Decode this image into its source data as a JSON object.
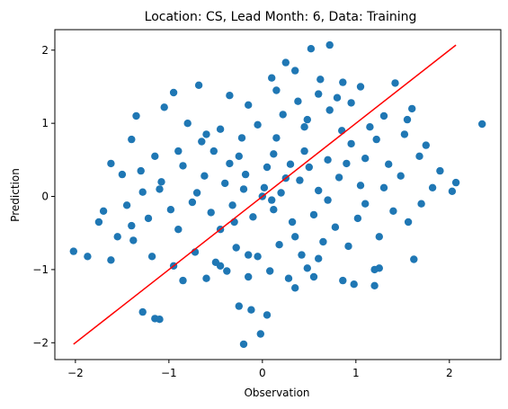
{
  "chart_data": {
    "type": "scatter",
    "title": "Location: CS, Lead Month: 6, Data: Training",
    "xlabel": "Observation",
    "ylabel": "Prediction",
    "xlim": [
      -2.22,
      2.55
    ],
    "ylim": [
      -2.23,
      2.28
    ],
    "xticks": [
      -2,
      -1,
      0,
      1,
      2
    ],
    "yticks": [
      -2,
      -1,
      0,
      1,
      2
    ],
    "xtick_labels": [
      "−2",
      "−1",
      "0",
      "1",
      "2"
    ],
    "ytick_labels": [
      "−2",
      "−1",
      "0",
      "1",
      "2"
    ],
    "grid": false,
    "colors": {
      "points": "#1f77b4",
      "fit_line": "#ff0000"
    },
    "fit_line": {
      "x": [
        -2.02,
        2.07
      ],
      "y": [
        -2.02,
        2.07
      ]
    },
    "points": [
      [
        -2.02,
        -0.75
      ],
      [
        -1.87,
        -0.82
      ],
      [
        2.35,
        0.99
      ],
      [
        2.07,
        0.19
      ],
      [
        2.03,
        0.07
      ],
      [
        0.72,
        2.07
      ],
      [
        0.52,
        2.02
      ],
      [
        0.25,
        1.83
      ],
      [
        0.35,
        1.72
      ],
      [
        0.1,
        1.62
      ],
      [
        0.62,
        1.6
      ],
      [
        0.86,
        1.56
      ],
      [
        1.05,
        1.5
      ],
      [
        1.42,
        1.55
      ],
      [
        -0.68,
        1.52
      ],
      [
        -0.95,
        1.42
      ],
      [
        -0.35,
        1.38
      ],
      [
        1.6,
        1.2
      ],
      [
        1.55,
        1.05
      ],
      [
        1.75,
        0.7
      ],
      [
        1.82,
        0.12
      ],
      [
        1.56,
        -0.35
      ],
      [
        1.62,
        -0.86
      ],
      [
        1.25,
        -0.98
      ],
      [
        1.2,
        -1.0
      ],
      [
        0.86,
        -1.15
      ],
      [
        0.98,
        -1.2
      ],
      [
        1.2,
        -1.22
      ],
      [
        0.55,
        -1.1
      ],
      [
        0.35,
        -1.25
      ],
      [
        -0.12,
        -1.55
      ],
      [
        0.05,
        -1.62
      ],
      [
        -0.25,
        -1.5
      ],
      [
        -0.2,
        -2.02
      ],
      [
        -0.02,
        -1.88
      ],
      [
        -1.28,
        -1.58
      ],
      [
        -1.15,
        -1.67
      ],
      [
        -1.1,
        -1.68
      ],
      [
        -1.62,
        -0.87
      ],
      [
        -1.55,
        -0.55
      ],
      [
        -1.62,
        0.45
      ],
      [
        -1.4,
        0.78
      ],
      [
        -1.35,
        1.1
      ],
      [
        -1.05,
        1.22
      ],
      [
        -0.8,
        1.0
      ],
      [
        -0.52,
        0.62
      ],
      [
        -0.22,
        0.8
      ],
      [
        0.12,
        0.58
      ],
      [
        0.3,
        0.44
      ],
      [
        0.45,
        0.62
      ],
      [
        0.7,
        0.5
      ],
      [
        0.95,
        0.72
      ],
      [
        1.1,
        0.52
      ],
      [
        1.35,
        0.44
      ],
      [
        1.52,
        0.85
      ],
      [
        1.48,
        0.28
      ],
      [
        1.3,
        0.12
      ],
      [
        1.05,
        0.15
      ],
      [
        0.82,
        0.26
      ],
      [
        0.6,
        0.08
      ],
      [
        0.4,
        0.22
      ],
      [
        0.2,
        0.05
      ],
      [
        0.02,
        0.12
      ],
      [
        -0.18,
        0.3
      ],
      [
        -0.4,
        0.18
      ],
      [
        -0.62,
        0.28
      ],
      [
        -0.85,
        0.42
      ],
      [
        -1.08,
        0.2
      ],
      [
        -1.28,
        0.06
      ],
      [
        -1.45,
        -0.12
      ],
      [
        -1.22,
        -0.3
      ],
      [
        -0.98,
        -0.18
      ],
      [
        -0.75,
        -0.08
      ],
      [
        -0.55,
        -0.22
      ],
      [
        -0.32,
        -0.12
      ],
      [
        -0.1,
        -0.28
      ],
      [
        0.12,
        -0.18
      ],
      [
        0.32,
        -0.35
      ],
      [
        0.55,
        -0.25
      ],
      [
        0.78,
        -0.42
      ],
      [
        1.02,
        -0.3
      ],
      [
        1.25,
        -0.55
      ],
      [
        0.92,
        -0.68
      ],
      [
        0.65,
        -0.62
      ],
      [
        0.42,
        -0.8
      ],
      [
        0.18,
        -0.66
      ],
      [
        -0.05,
        -0.82
      ],
      [
        -0.28,
        -0.7
      ],
      [
        -0.5,
        -0.9
      ],
      [
        -0.72,
        -0.76
      ],
      [
        -0.95,
        -0.95
      ],
      [
        -1.18,
        -0.82
      ],
      [
        -1.38,
        -0.6
      ],
      [
        -0.85,
        -1.15
      ],
      [
        -0.6,
        -1.12
      ],
      [
        -0.38,
        -1.02
      ],
      [
        -0.15,
        -1.1
      ],
      [
        0.08,
        -1.02
      ],
      [
        0.28,
        -1.12
      ],
      [
        0.48,
        -0.98
      ],
      [
        -0.45,
        0.92
      ],
      [
        -0.05,
        0.98
      ],
      [
        0.22,
        1.12
      ],
      [
        0.48,
        1.05
      ],
      [
        0.72,
        1.18
      ],
      [
        0.95,
        1.28
      ],
      [
        1.15,
        0.95
      ],
      [
        -0.65,
        0.75
      ],
      [
        -0.9,
        0.62
      ],
      [
        -1.15,
        0.55
      ],
      [
        -0.25,
        0.55
      ],
      [
        0.05,
        0.4
      ],
      [
        0.85,
        0.9
      ],
      [
        1.22,
        0.78
      ],
      [
        0.38,
        1.3
      ],
      [
        0.15,
        1.45
      ],
      [
        -0.15,
        1.25
      ],
      [
        0.6,
        1.4
      ],
      [
        0.8,
        1.35
      ],
      [
        1.3,
        1.1
      ],
      [
        -1.5,
        0.3
      ],
      [
        -1.4,
        -0.4
      ],
      [
        -1.7,
        -0.2
      ],
      [
        -1.75,
        -0.35
      ],
      [
        1.7,
        -0.1
      ],
      [
        1.9,
        0.35
      ],
      [
        1.68,
        0.55
      ],
      [
        0.0,
        0.0
      ],
      [
        0.1,
        -0.05
      ],
      [
        -0.2,
        0.1
      ],
      [
        -0.3,
        -0.35
      ],
      [
        0.25,
        0.25
      ],
      [
        0.5,
        0.4
      ],
      [
        -0.45,
        -0.45
      ],
      [
        0.7,
        -0.05
      ],
      [
        -0.7,
        0.05
      ],
      [
        0.35,
        -0.55
      ],
      [
        -0.35,
        0.45
      ],
      [
        0.9,
        0.45
      ],
      [
        -0.9,
        -0.45
      ],
      [
        1.1,
        -0.1
      ],
      [
        -1.1,
        0.1
      ],
      [
        0.15,
        0.8
      ],
      [
        -0.15,
        -0.8
      ],
      [
        0.6,
        -0.85
      ],
      [
        -0.6,
        0.85
      ],
      [
        1.4,
        -0.2
      ],
      [
        -1.3,
        0.35
      ],
      [
        0.45,
        0.95
      ],
      [
        -0.45,
        -0.95
      ]
    ]
  }
}
